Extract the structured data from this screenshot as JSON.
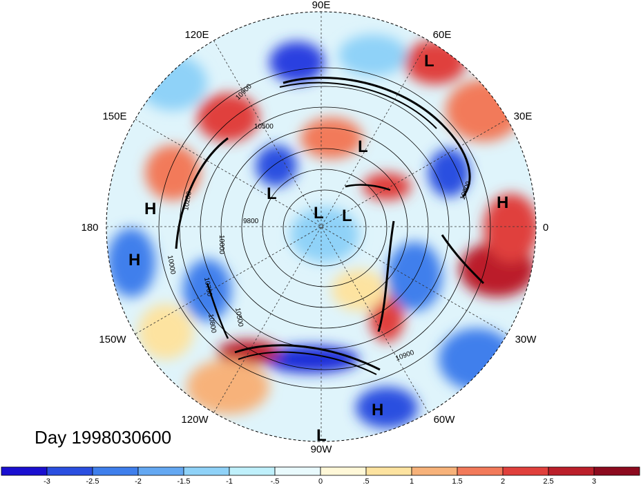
{
  "title": "Day 1998030600",
  "longitude_labels": [
    "90E",
    "60E",
    "30E",
    "0",
    "30W",
    "60W",
    "90W",
    "120W",
    "150W",
    "180",
    "150E",
    "120E"
  ],
  "pressure_systems": [
    "L",
    "L",
    "L",
    "L",
    "L",
    "L",
    "H",
    "H",
    "H",
    "H"
  ],
  "contour_labels": [
    "10900",
    "10500",
    "9800",
    "10000",
    "10200",
    "10700",
    "10800",
    "10500",
    "10900",
    "10000",
    "10900"
  ],
  "colorbar": {
    "tick_labels": [
      "-3",
      "-2.5",
      "-2",
      "-1.5",
      "-1",
      "-.5",
      "0",
      ".5",
      "1",
      "1.5",
      "2",
      "2.5",
      "3"
    ],
    "colors": [
      "#1a0fd0",
      "#2a4fe0",
      "#3f7fec",
      "#64a8f2",
      "#8fd2f8",
      "#bff0fb",
      "#e9fafd",
      "#fff8d8",
      "#fde3a0",
      "#f7b27a",
      "#f27a5a",
      "#e0403c",
      "#bb1f2a",
      "#8c0a1e"
    ]
  },
  "colors": {
    "ocean_neutral": "#e9fafd",
    "background": "#ffffff"
  }
}
